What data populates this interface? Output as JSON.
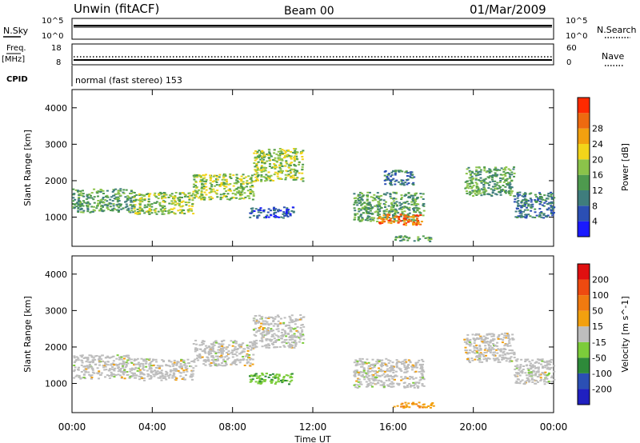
{
  "header": {
    "station": "Unwin (fitACF)",
    "beam": "Beam 00",
    "date": "01/Mar/2009"
  },
  "noise_panel": {
    "left_label": "N.Sky",
    "right_label": "N.Search",
    "ticks": [
      "10^5",
      "10^0"
    ]
  },
  "freq_panel": {
    "left_label": "Freq.",
    "left_unit": "[MHz]",
    "left_ticks": [
      "18",
      "8"
    ],
    "right_label": "Nave",
    "right_ticks": [
      "60",
      "0"
    ]
  },
  "cpid_panel": {
    "label": "CPID",
    "program": "normal (fast stereo) 153"
  },
  "chart_data": [
    {
      "type": "heatmap",
      "name": "power",
      "ylabel": "Slant Range [km]",
      "ylim": [
        200,
        4500
      ],
      "yticks": [
        "1000",
        "2000",
        "3000",
        "4000"
      ],
      "xlim": [
        0,
        24
      ],
      "colorbar": {
        "label": "Power [dB]",
        "ticks": [
          "4",
          "8",
          "12",
          "16",
          "20",
          "24",
          "28"
        ],
        "range": [
          0,
          32
        ],
        "colors": [
          "#1a1aff",
          "#2b4fb4",
          "#3f7d7d",
          "#4e9a4e",
          "#8bc34a",
          "#f2d41a",
          "#f2a00f",
          "#ee6a10",
          "#ff2a00"
        ]
      },
      "regions": [
        {
          "x0": 0.0,
          "x1": 3.0,
          "ylo": 1150,
          "yhi": 1800,
          "level": 3
        },
        {
          "x0": 3.0,
          "x1": 6.0,
          "ylo": 1100,
          "yhi": 1700,
          "level": 4
        },
        {
          "x0": 6.0,
          "x1": 9.0,
          "ylo": 1500,
          "yhi": 2200,
          "level": 4
        },
        {
          "x0": 9.0,
          "x1": 11.5,
          "ylo": 2000,
          "yhi": 2900,
          "level": 4
        },
        {
          "x0": 8.8,
          "x1": 11.0,
          "ylo": 1000,
          "yhi": 1300,
          "level": 1
        },
        {
          "x0": 14.0,
          "x1": 17.5,
          "ylo": 900,
          "yhi": 1700,
          "level": 3
        },
        {
          "x0": 15.2,
          "x1": 17.4,
          "ylo": 800,
          "yhi": 1100,
          "level": 7
        },
        {
          "x0": 15.5,
          "x1": 17.0,
          "ylo": 1900,
          "yhi": 2300,
          "level": 2
        },
        {
          "x0": 16.0,
          "x1": 18.0,
          "ylo": 350,
          "yhi": 500,
          "level": 3
        },
        {
          "x0": 19.5,
          "x1": 22.0,
          "ylo": 1600,
          "yhi": 2400,
          "level": 3
        },
        {
          "x0": 22.0,
          "x1": 24.0,
          "ylo": 1000,
          "yhi": 1700,
          "level": 2
        }
      ]
    },
    {
      "type": "heatmap",
      "name": "velocity",
      "ylabel": "Slant Range [km]",
      "ylim": [
        200,
        4500
      ],
      "yticks": [
        "1000",
        "2000",
        "3000",
        "4000"
      ],
      "xlim": [
        0,
        24
      ],
      "xticks": [
        "00:00",
        "04:00",
        "08:00",
        "12:00",
        "16:00",
        "20:00",
        "00:00"
      ],
      "xlabel": "Time UT",
      "colorbar": {
        "label": "Velocity [m s^-1]",
        "ticks": [
          "200",
          "100",
          "50",
          "15",
          "-15",
          "-50",
          "-100",
          "-200"
        ],
        "colors": [
          "#2020c0",
          "#2b4fb4",
          "#2e8a3a",
          "#7ccc3a",
          "#bdbdbd",
          "#f2a00f",
          "#f07a10",
          "#ee4a10",
          "#e01010"
        ]
      },
      "regions": [
        {
          "x0": 0.0,
          "x1": 3.0,
          "ylo": 1150,
          "yhi": 1800,
          "v": 0
        },
        {
          "x0": 3.0,
          "x1": 6.0,
          "ylo": 1100,
          "yhi": 1700,
          "v": 0
        },
        {
          "x0": 6.0,
          "x1": 9.0,
          "ylo": 1500,
          "yhi": 2200,
          "v": 0
        },
        {
          "x0": 9.0,
          "x1": 11.5,
          "ylo": 2000,
          "yhi": 2900,
          "v": 0
        },
        {
          "x0": 8.8,
          "x1": 11.0,
          "ylo": 1000,
          "yhi": 1300,
          "v": 40
        },
        {
          "x0": 14.0,
          "x1": 17.5,
          "ylo": 900,
          "yhi": 1700,
          "v": 0
        },
        {
          "x0": 16.0,
          "x1": 18.0,
          "ylo": 350,
          "yhi": 500,
          "v": -60
        },
        {
          "x0": 19.5,
          "x1": 22.0,
          "ylo": 1600,
          "yhi": 2400,
          "v": 0
        },
        {
          "x0": 22.0,
          "x1": 24.0,
          "ylo": 1000,
          "yhi": 1700,
          "v": 0
        }
      ]
    }
  ]
}
